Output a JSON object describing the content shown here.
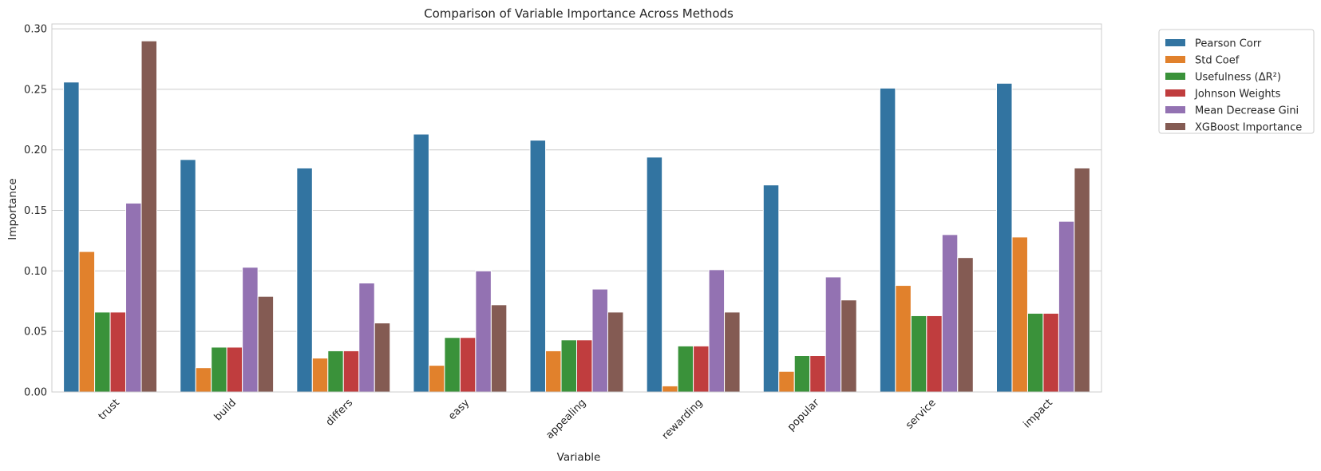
{
  "chart_data": {
    "type": "bar",
    "title": "Comparison of Variable Importance Across Methods",
    "xlabel": "Variable",
    "ylabel": "Importance",
    "ylim": [
      0,
      0.304
    ],
    "yticks": [
      "0.00",
      "0.05",
      "0.10",
      "0.15",
      "0.20",
      "0.25",
      "0.30"
    ],
    "grid": true,
    "legend_position": "outside-top-right",
    "categories": [
      "trust",
      "build",
      "differs",
      "easy",
      "appealing",
      "rewarding",
      "popular",
      "service",
      "impact"
    ],
    "series": [
      {
        "name": "Pearson Corr",
        "color": "#3274a1",
        "values": [
          0.256,
          0.192,
          0.185,
          0.213,
          0.208,
          0.194,
          0.171,
          0.251,
          0.255
        ]
      },
      {
        "name": "Std Coef",
        "color": "#e1812c",
        "values": [
          0.116,
          0.02,
          0.028,
          0.022,
          0.034,
          0.005,
          0.017,
          0.088,
          0.128
        ]
      },
      {
        "name": "Usefulness (ΔR²)",
        "color": "#3a923a",
        "values": [
          0.066,
          0.037,
          0.034,
          0.045,
          0.043,
          0.038,
          0.03,
          0.063,
          0.065
        ]
      },
      {
        "name": "Johnson Weights",
        "color": "#c03d3e",
        "values": [
          0.066,
          0.037,
          0.034,
          0.045,
          0.043,
          0.038,
          0.03,
          0.063,
          0.065
        ]
      },
      {
        "name": "Mean Decrease Gini",
        "color": "#9372b2",
        "values": [
          0.156,
          0.103,
          0.09,
          0.1,
          0.085,
          0.101,
          0.095,
          0.13,
          0.141
        ]
      },
      {
        "name": "XGBoost Importance",
        "color": "#845b53",
        "values": [
          0.29,
          0.079,
          0.057,
          0.072,
          0.066,
          0.066,
          0.076,
          0.111,
          0.185
        ]
      }
    ]
  }
}
